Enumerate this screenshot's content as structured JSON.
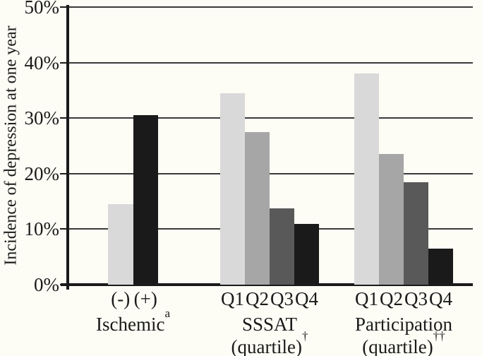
{
  "chart_data": {
    "type": "bar",
    "title": "",
    "ylabel": "Incidence of depression at one year",
    "xlabel": "",
    "ylim": [
      0,
      50
    ],
    "grid": true,
    "legend": false,
    "yticks": [
      {
        "value": 0,
        "label": "0%"
      },
      {
        "value": 10,
        "label": "10%"
      },
      {
        "value": 20,
        "label": "20%"
      },
      {
        "value": 30,
        "label": "30%"
      },
      {
        "value": 40,
        "label": "40%"
      },
      {
        "value": 50,
        "label": "50%"
      }
    ],
    "groups": [
      {
        "name": "Ischemic",
        "name_superscript": "a",
        "subname": "",
        "subname_superscript": "",
        "bars": [
          {
            "tick": "(-)",
            "value": 14.5,
            "color": "#d9d9d9"
          },
          {
            "tick": "(+)",
            "value": 30.5,
            "color": "#1a1a1a"
          }
        ]
      },
      {
        "name": "SSSAT",
        "name_superscript": "",
        "subname": "(quartile)",
        "subname_superscript": "†",
        "bars": [
          {
            "tick": "Q1",
            "value": 34.5,
            "color": "#d9d9d9"
          },
          {
            "tick": "Q2",
            "value": 27.5,
            "color": "#a6a6a6"
          },
          {
            "tick": "Q3",
            "value": 13.8,
            "color": "#595959"
          },
          {
            "tick": "Q4",
            "value": 11,
            "color": "#1a1a1a"
          }
        ]
      },
      {
        "name": "Participation",
        "name_superscript": "",
        "subname": "(quartile)",
        "subname_superscript": "††",
        "bars": [
          {
            "tick": "Q1",
            "value": 38,
            "color": "#d9d9d9"
          },
          {
            "tick": "Q2",
            "value": 23.5,
            "color": "#a6a6a6"
          },
          {
            "tick": "Q3",
            "value": 18.5,
            "color": "#595959"
          },
          {
            "tick": "Q4",
            "value": 6.5,
            "color": "#1a1a1a"
          }
        ]
      }
    ],
    "colors": {
      "axis": "#1a1a1a",
      "gridline": "#3a3a3a",
      "background": "#fdfcf5",
      "text": "#1a1a1a"
    }
  }
}
